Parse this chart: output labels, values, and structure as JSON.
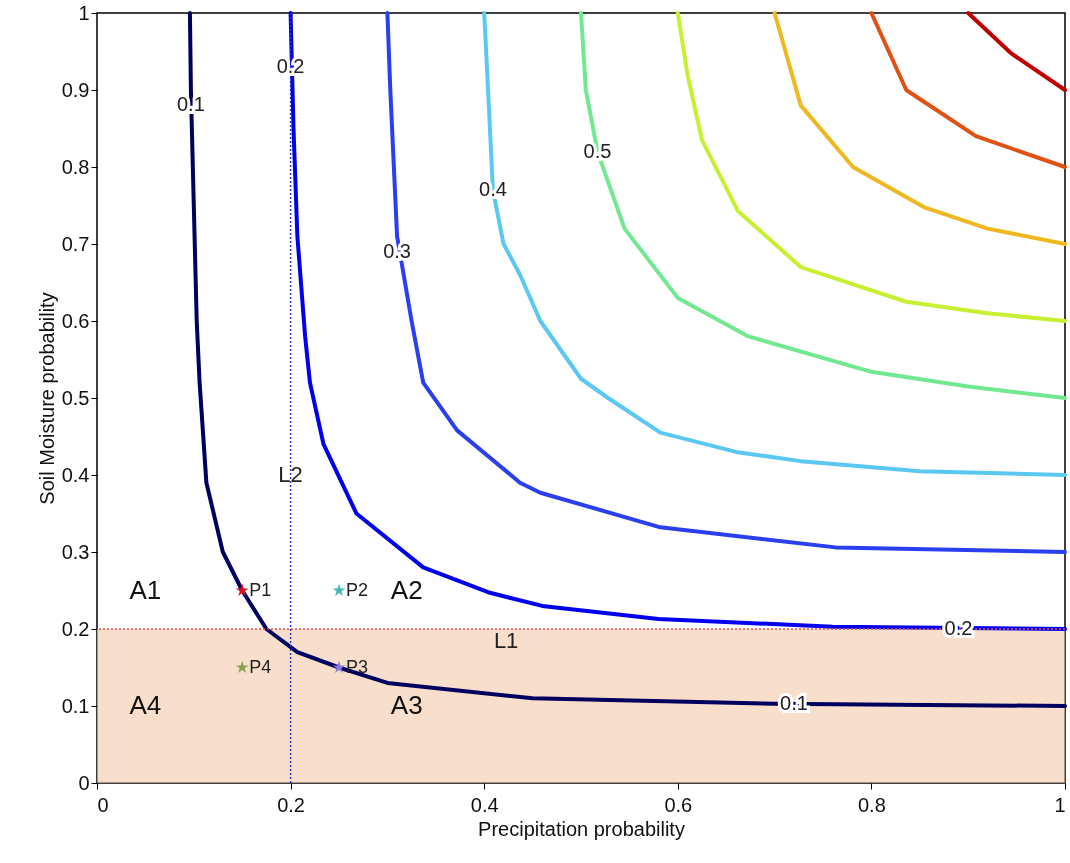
{
  "chart_data": {
    "type": "line",
    "xlabel": "Precipitation probability",
    "ylabel": "Soil Moisture probability",
    "xlim": [
      0,
      1
    ],
    "ylim": [
      0,
      1
    ],
    "xticks": [
      0,
      0.2,
      0.4,
      0.6,
      0.8,
      1
    ],
    "yticks": [
      0,
      0.1,
      0.2,
      0.3,
      0.4,
      0.5,
      0.6,
      0.7,
      0.8,
      0.9,
      1
    ],
    "marker": "none",
    "line_style": "solid",
    "series": [
      {
        "color": "#00005e",
        "x": [
          0.096,
          0.097,
          0.1,
          0.103,
          0.106,
          0.113,
          0.13,
          0.15,
          0.175,
          0.207,
          0.25,
          0.3,
          0.45,
          0.7,
          1
        ],
        "values": [
          1,
          0.9,
          0.75,
          0.6,
          0.52,
          0.39,
          0.3,
          0.25,
          0.2,
          0.17,
          0.15,
          0.13,
          0.11,
          0.103,
          0.1
        ]
      },
      {
        "color": "#0000ee",
        "x": [
          0.2,
          0.203,
          0.207,
          0.215,
          0.22,
          0.234,
          0.268,
          0.337,
          0.406,
          0.46,
          0.58,
          0.76,
          1
        ],
        "values": [
          1,
          0.85,
          0.71,
          0.58,
          0.52,
          0.44,
          0.35,
          0.28,
          0.247,
          0.23,
          0.213,
          0.203,
          0.2
        ]
      },
      {
        "color": "#2a3ff0",
        "x": [
          0.3,
          0.303,
          0.31,
          0.325,
          0.337,
          0.372,
          0.437,
          0.458,
          0.582,
          0.763,
          1
        ],
        "values": [
          1,
          0.9,
          0.71,
          0.6,
          0.52,
          0.458,
          0.39,
          0.377,
          0.332,
          0.306,
          0.3
        ]
      },
      {
        "color": "#5ac8f0",
        "x": [
          0.4,
          0.404,
          0.409,
          0.42,
          0.437,
          0.458,
          0.5,
          0.528,
          0.582,
          0.66,
          0.727,
          0.85,
          1
        ],
        "values": [
          1,
          0.9,
          0.77,
          0.7,
          0.66,
          0.6,
          0.525,
          0.5,
          0.455,
          0.43,
          0.418,
          0.405,
          0.4
        ]
      },
      {
        "color": "#72e890",
        "x": [
          0.5,
          0.505,
          0.517,
          0.545,
          0.6,
          0.673,
          0.8,
          0.9,
          1
        ],
        "values": [
          1,
          0.9,
          0.82,
          0.72,
          0.63,
          0.58,
          0.534,
          0.515,
          0.5
        ]
      },
      {
        "color": "#c8f032",
        "x": [
          0.6,
          0.61,
          0.625,
          0.662,
          0.727,
          0.836,
          0.92,
          1
        ],
        "values": [
          1,
          0.92,
          0.835,
          0.743,
          0.67,
          0.625,
          0.61,
          0.6
        ]
      },
      {
        "color": "#f0b820",
        "x": [
          0.7,
          0.727,
          0.781,
          0.854,
          0.92,
          1
        ],
        "values": [
          1,
          0.88,
          0.8,
          0.748,
          0.72,
          0.7
        ]
      },
      {
        "color": "#e05214",
        "x": [
          0.8,
          0.836,
          0.908,
          1
        ],
        "values": [
          1,
          0.9,
          0.84,
          0.8
        ]
      },
      {
        "color": "#c00000",
        "x": [
          0.9,
          0.944,
          1
        ],
        "values": [
          1,
          0.948,
          0.9
        ]
      },
      {
        "type": "scatter",
        "name": "P1",
        "color": "#e01020",
        "marker": "star",
        "x": [
          0.15
        ],
        "values": [
          0.25
        ]
      },
      {
        "type": "scatter",
        "name": "P2",
        "color": "#40b8b8",
        "marker": "star",
        "x": [
          0.25
        ],
        "values": [
          0.25
        ]
      },
      {
        "type": "scatter",
        "name": "P3",
        "color": "#8a78e0",
        "marker": "star",
        "x": [
          0.25
        ],
        "values": [
          0.15
        ]
      },
      {
        "type": "scatter",
        "name": "P4",
        "color": "#88a050",
        "marker": "star",
        "x": [
          0.15
        ],
        "values": [
          0.15
        ]
      }
    ],
    "bands": [
      {
        "axis": "y",
        "from": 0,
        "to": 0.2,
        "color": "#f3c9a8"
      }
    ],
    "ref_lines": [
      {
        "axis": "y",
        "value": 0.2,
        "label": "L1",
        "color": "#e05050",
        "line_style": "dotted"
      },
      {
        "axis": "x",
        "value": 0.2,
        "label": "L2",
        "color": "#3030c0",
        "line_style": "dotted"
      }
    ],
    "annotations": [
      {
        "text": "0.1",
        "x": 0.097,
        "y": 0.88
      },
      {
        "text": "0.2",
        "x": 0.2,
        "y": 0.93
      },
      {
        "text": "0.3",
        "x": 0.31,
        "y": 0.69
      },
      {
        "text": "0.4",
        "x": 0.409,
        "y": 0.77
      },
      {
        "text": "0.5",
        "x": 0.517,
        "y": 0.82
      },
      {
        "text": "0.2",
        "x": 0.89,
        "y": 0.2
      },
      {
        "text": "0.1",
        "x": 0.72,
        "y": 0.103
      },
      "A1",
      "A2",
      "A3",
      "A4"
    ]
  }
}
